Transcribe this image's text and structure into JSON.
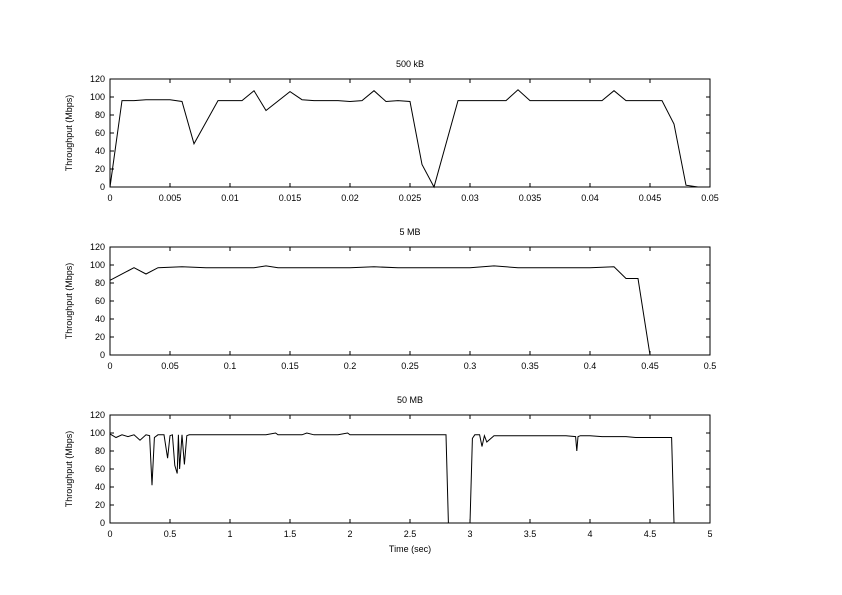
{
  "chart_data": [
    {
      "type": "line",
      "title": "500 kB",
      "xlabel": "",
      "ylabel": "Throughput (Mbps)",
      "xlim": [
        0,
        0.05
      ],
      "ylim": [
        0,
        120
      ],
      "xticks": [
        0,
        0.005,
        0.01,
        0.015,
        0.02,
        0.025,
        0.03,
        0.035,
        0.04,
        0.045,
        0.05
      ],
      "xtick_labels": [
        "0",
        "0.005",
        "0.01",
        "0.015",
        "0.02",
        "0.025",
        "0.03",
        "0.035",
        "0.04",
        "0.045",
        "0.05"
      ],
      "yticks": [
        0,
        20,
        40,
        60,
        80,
        100,
        120
      ],
      "ytick_labels": [
        "0",
        "20",
        "40",
        "60",
        "80",
        "100",
        "120"
      ],
      "grid": false,
      "line_color": "#000000",
      "series": [
        {
          "x": [
            0,
            0.001,
            0.002,
            0.003,
            0.004,
            0.005,
            0.006,
            0.007,
            0.009,
            0.011,
            0.012,
            0.013,
            0.015,
            0.016,
            0.017,
            0.018,
            0.019,
            0.02,
            0.021,
            0.022,
            0.023,
            0.024,
            0.025,
            0.026,
            0.027,
            0.029,
            0.03,
            0.031,
            0.032,
            0.033,
            0.034,
            0.035,
            0.036,
            0.037,
            0.038,
            0.039,
            0.04,
            0.041,
            0.042,
            0.043,
            0.044,
            0.045,
            0.046,
            0.047,
            0.048,
            0.049
          ],
          "y": [
            0,
            96,
            96,
            97,
            97,
            97,
            95,
            48,
            96,
            96,
            107,
            85,
            106,
            97,
            96,
            96,
            96,
            95,
            96,
            107,
            95,
            96,
            95,
            25,
            0,
            96,
            96,
            96,
            96,
            96,
            108,
            96,
            96,
            96,
            96,
            96,
            96,
            96,
            107,
            96,
            96,
            96,
            96,
            70,
            2,
            0
          ]
        }
      ]
    },
    {
      "type": "line",
      "title": "5 MB",
      "xlabel": "",
      "ylabel": "Throughput (Mbps)",
      "xlim": [
        0,
        0.5
      ],
      "ylim": [
        0,
        120
      ],
      "xticks": [
        0,
        0.05,
        0.1,
        0.15,
        0.2,
        0.25,
        0.3,
        0.35,
        0.4,
        0.45,
        0.5
      ],
      "xtick_labels": [
        "0",
        "0.05",
        "0.1",
        "0.15",
        "0.2",
        "0.25",
        "0.3",
        "0.35",
        "0.4",
        "0.45",
        "0.5"
      ],
      "yticks": [
        0,
        20,
        40,
        60,
        80,
        100,
        120
      ],
      "ytick_labels": [
        "0",
        "20",
        "40",
        "60",
        "80",
        "100",
        "120"
      ],
      "grid": false,
      "line_color": "#000000",
      "series": [
        {
          "x": [
            0,
            0.02,
            0.03,
            0.04,
            0.06,
            0.08,
            0.1,
            0.12,
            0.13,
            0.14,
            0.16,
            0.18,
            0.2,
            0.22,
            0.24,
            0.26,
            0.28,
            0.3,
            0.32,
            0.34,
            0.36,
            0.38,
            0.4,
            0.42,
            0.43,
            0.44,
            0.45
          ],
          "y": [
            83,
            97,
            90,
            97,
            98,
            97,
            97,
            97,
            99,
            97,
            97,
            97,
            97,
            98,
            97,
            97,
            97,
            97,
            99,
            97,
            97,
            97,
            97,
            98,
            85,
            85,
            0
          ]
        }
      ]
    },
    {
      "type": "line",
      "title": "50 MB",
      "xlabel": "Time (sec)",
      "ylabel": "Throughput (Mbps)",
      "xlim": [
        0,
        5
      ],
      "ylim": [
        0,
        120
      ],
      "xticks": [
        0,
        0.5,
        1,
        1.5,
        2,
        2.5,
        3,
        3.5,
        4,
        4.5,
        5
      ],
      "xtick_labels": [
        "0",
        "0.5",
        "1",
        "1.5",
        "2",
        "2.5",
        "3",
        "3.5",
        "4",
        "4.5",
        "5"
      ],
      "yticks": [
        0,
        20,
        40,
        60,
        80,
        100,
        120
      ],
      "ytick_labels": [
        "0",
        "20",
        "40",
        "60",
        "80",
        "100",
        "120"
      ],
      "grid": false,
      "line_color": "#000000",
      "series": [
        {
          "x": [
            0,
            0.05,
            0.1,
            0.15,
            0.2,
            0.25,
            0.3,
            0.33,
            0.35,
            0.37,
            0.4,
            0.45,
            0.48,
            0.5,
            0.52,
            0.54,
            0.56,
            0.57,
            0.58,
            0.6,
            0.62,
            0.64,
            0.66,
            0.7,
            0.8,
            0.9,
            1.0,
            1.1,
            1.2,
            1.3,
            1.38,
            1.4,
            1.5,
            1.6,
            1.64,
            1.7,
            1.8,
            1.9,
            1.98,
            2.0,
            2.1,
            2.2,
            2.3,
            2.4,
            2.5,
            2.6,
            2.7,
            2.8,
            2.82,
            2.84,
            3.0,
            3.02,
            3.04,
            3.06,
            3.08,
            3.1,
            3.12,
            3.14,
            3.2,
            3.3,
            3.4,
            3.5,
            3.6,
            3.7,
            3.8,
            3.88,
            3.89,
            3.9,
            3.92,
            4.0,
            4.1,
            4.2,
            4.3,
            4.38,
            4.4,
            4.5,
            4.6,
            4.68,
            4.7
          ],
          "y": [
            99,
            95,
            98,
            96,
            98,
            92,
            98,
            97,
            42,
            95,
            98,
            98,
            72,
            97,
            98,
            64,
            55,
            98,
            60,
            98,
            65,
            97,
            98,
            98,
            98,
            98,
            98,
            98,
            98,
            98,
            100,
            98,
            98,
            98,
            100,
            98,
            98,
            98,
            100,
            98,
            98,
            98,
            98,
            98,
            98,
            98,
            98,
            98,
            0,
            0,
            0,
            94,
            98,
            98,
            98,
            85,
            97,
            90,
            97,
            97,
            97,
            97,
            97,
            97,
            97,
            96,
            80,
            96,
            97,
            97,
            96,
            96,
            96,
            95,
            95,
            95,
            95,
            95,
            0
          ]
        }
      ]
    }
  ]
}
